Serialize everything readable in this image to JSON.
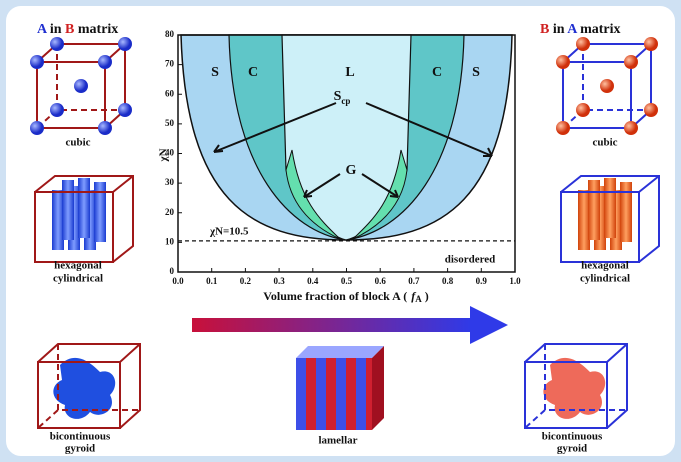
{
  "left": {
    "title": {
      "a": "A",
      "mid": "in",
      "b": "B",
      "end": "matrix"
    },
    "cubic": "cubic",
    "hexagonal": [
      "hexagonal",
      "cylindrical"
    ],
    "gyroid": [
      "bicontinuous",
      "gyroid"
    ]
  },
  "right": {
    "title": {
      "a": "B",
      "mid": "in",
      "b": "A",
      "end": "matrix"
    },
    "cubic": "cubic",
    "hexagonal": [
      "hexagonal",
      "cylindrical"
    ],
    "gyroid": [
      "bicontinuous",
      "gyroid"
    ]
  },
  "center": {
    "lamellar": "lamellar"
  },
  "phase_diagram": {
    "y_label": "χN",
    "x_label": "Volume fraction of block A (",
    "x_label_symbol": "f",
    "x_label_sub": "A",
    "x_label_end": ")",
    "xlim": [
      0,
      1
    ],
    "ylim": [
      0,
      80
    ],
    "xticks": [
      {
        "value": 0,
        "label": "0.0"
      },
      {
        "value": 0.1,
        "label": "0.1"
      },
      {
        "value": 0.2,
        "label": "0.2"
      },
      {
        "value": 0.3,
        "label": "0.3"
      },
      {
        "value": 0.4,
        "label": "0.4"
      },
      {
        "value": 0.5,
        "label": "0.5"
      },
      {
        "value": 0.6,
        "label": "0.6"
      },
      {
        "value": 0.7,
        "label": "0.7"
      },
      {
        "value": 0.8,
        "label": "0.8"
      },
      {
        "value": 0.9,
        "label": "0.9"
      },
      {
        "value": 1,
        "label": "1.0"
      }
    ],
    "yticks": [
      0,
      10,
      20,
      30,
      40,
      50,
      60,
      70,
      80
    ],
    "regions": [
      "S",
      "C",
      "L",
      "C",
      "S"
    ],
    "scp": "S",
    "scp_sub": "cp",
    "g": "G",
    "critical": "χN=10.5",
    "critical_value": 10.5,
    "disordered": "disordered"
  }
}
